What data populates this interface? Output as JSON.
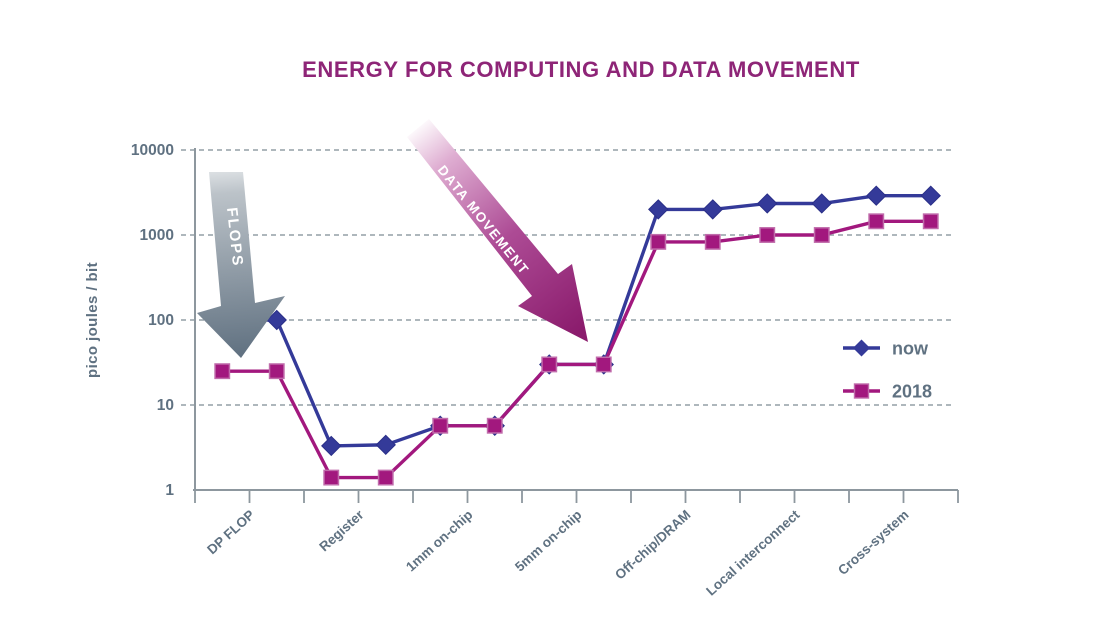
{
  "title": "ENERGY FOR COMPUTING AND DATA MOVEMENT",
  "colors": {
    "title": "#8e2577",
    "now_series": "#343a99",
    "series_2018": "#a2187e",
    "axis": "#8d979e",
    "grid": "#a3adb3",
    "label_text": "#5f7181",
    "flops_arrow_top": "#d2d7da",
    "flops_arrow_bottom": "#5e6f7f",
    "dm_arrow_start": "#ffffff",
    "dm_arrow_end": "#8b1c6d"
  },
  "y_axis": {
    "label": "pico joules / bit",
    "tick_labels": [
      "10000",
      "1000",
      "100",
      "10",
      "1"
    ]
  },
  "legend": [
    {
      "label": "now",
      "marker": "diamond"
    },
    {
      "label": "2018",
      "marker": "square"
    }
  ],
  "annotations": {
    "flops_label": "FLOPS",
    "data_movement_label": "DATA MOVEMENT"
  },
  "chart_data": {
    "type": "line",
    "title": "ENERGY FOR COMPUTING AND DATA MOVEMENT",
    "ylabel": "pico joules / bit",
    "xlabel": "",
    "yscale": "log",
    "ylim": [
      1,
      10000
    ],
    "ytick_values": [
      10000,
      1000,
      100,
      10,
      1
    ],
    "grid": true,
    "legend_position": "right",
    "categories": [
      "DP FLOP",
      "Register",
      "1mm on-chip",
      "5mm on-chip",
      "Off-chip/DRAM",
      "Local interconnect",
      "Cross-system"
    ],
    "points_per_category": 2,
    "series": [
      {
        "name": "now",
        "color": "#343a99",
        "marker": "diamond",
        "values": [
          [
            100,
            100
          ],
          [
            3.3,
            3.4
          ],
          [
            5.7,
            5.7
          ],
          [
            30,
            30
          ],
          [
            2000,
            2000
          ],
          [
            2350,
            2350
          ],
          [
            2900,
            2900
          ]
        ]
      },
      {
        "name": "2018",
        "color": "#a2187e",
        "marker": "square",
        "values": [
          [
            25,
            25
          ],
          [
            1.4,
            1.4
          ],
          [
            5.7,
            5.7
          ],
          [
            30,
            30
          ],
          [
            830,
            830
          ],
          [
            1000,
            1000
          ],
          [
            1450,
            1450
          ]
        ]
      }
    ],
    "annotations": [
      {
        "label": "FLOPS",
        "type": "arrow",
        "direction": "down",
        "color": "gray-gradient",
        "target": "DP FLOP"
      },
      {
        "label": "DATA MOVEMENT",
        "type": "arrow",
        "direction": "down-right",
        "color": "magenta-gradient",
        "target": "5mm on-chip"
      }
    ]
  }
}
